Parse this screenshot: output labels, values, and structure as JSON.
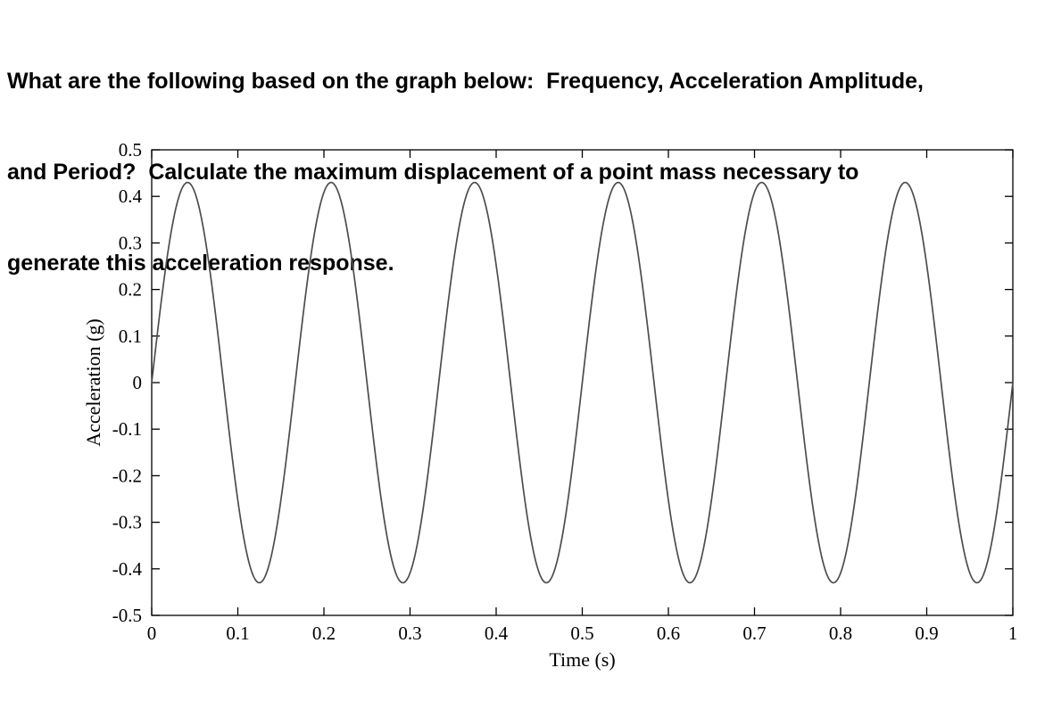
{
  "question": {
    "text": "What are the following based on the graph below:  Frequency, Acceleration Amplitude, and Period?  Calculate the maximum displacement of a point mass necessary to generate this acceleration response.",
    "lines": [
      "What are the following based on the graph below:  Frequency, Acceleration Amplitude,",
      "and Period?  Calculate the maximum displacement of a point mass necessary to",
      "generate this acceleration response."
    ]
  },
  "chart_data": {
    "type": "line",
    "title": "",
    "xlabel": "Time (s)",
    "ylabel": "Acceleration (g)",
    "xlim": [
      0,
      1
    ],
    "ylim": [
      -0.5,
      0.5
    ],
    "xticks": [
      "0",
      "0.1",
      "0.2",
      "0.3",
      "0.4",
      "0.5",
      "0.6",
      "0.7",
      "0.8",
      "0.9",
      "1"
    ],
    "yticks": [
      "-0.5",
      "-0.4",
      "-0.3",
      "-0.2",
      "-0.1",
      "0",
      "0.1",
      "0.2",
      "0.3",
      "0.4",
      "0.5"
    ],
    "grid": false,
    "legend": null,
    "axis_color": "#000000",
    "background": "#ffffff",
    "series": [
      {
        "name": "acceleration-response",
        "signal": "sine",
        "amplitude_g": 0.43,
        "frequency_hz": 6,
        "period_s": 0.1667,
        "phase_rad": 0,
        "num_cycles_shown": 6,
        "peak_times_s": [
          0.042,
          0.208,
          0.375,
          0.542,
          0.708,
          0.875
        ],
        "color": "#4d4d4d"
      }
    ]
  }
}
